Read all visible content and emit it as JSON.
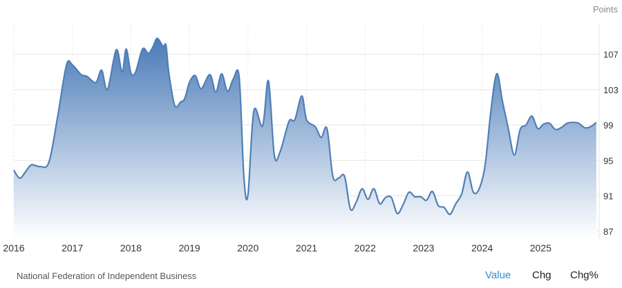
{
  "chart_data": {
    "type": "area",
    "unit_label": "Points",
    "yticks": [
      87,
      91,
      95,
      99,
      103,
      107
    ],
    "xticks": [
      "2016",
      "2017",
      "2018",
      "2019",
      "2020",
      "2021",
      "2022",
      "2023",
      "2024",
      "2025"
    ],
    "ylim": [
      86.2,
      110.4
    ],
    "xlim": [
      2016.0,
      2026.0
    ],
    "grid": "horizontal and vertical",
    "colors": {
      "line": "#4f7fb5",
      "fill_top": "#4a7bb8",
      "fill_bottom": "#ffffff"
    },
    "series": [
      {
        "x": [
          2016.0,
          2016.1,
          2016.2,
          2016.3,
          2016.45,
          2016.6,
          2016.75,
          2016.9,
          2017.0,
          2017.15,
          2017.25,
          2017.4,
          2017.5,
          2017.6,
          2017.75,
          2017.85,
          2017.92,
          2018.0,
          2018.08,
          2018.2,
          2018.3,
          2018.38,
          2018.45,
          2018.55,
          2018.6,
          2018.65,
          2018.75,
          2018.85,
          2018.92,
          2019.0,
          2019.1,
          2019.2,
          2019.35,
          2019.45,
          2019.55,
          2019.65,
          2019.75,
          2019.85,
          2019.93,
          2020.0,
          2020.1,
          2020.25,
          2020.35,
          2020.45,
          2020.55,
          2020.7,
          2020.8,
          2020.92,
          2021.0,
          2021.15,
          2021.25,
          2021.35,
          2021.45,
          2021.55,
          2021.65,
          2021.75,
          2021.85,
          2021.95,
          2022.05,
          2022.15,
          2022.25,
          2022.35,
          2022.45,
          2022.55,
          2022.65,
          2022.75,
          2022.85,
          2022.95,
          2023.05,
          2023.15,
          2023.25,
          2023.35,
          2023.45,
          2023.55,
          2023.65,
          2023.75,
          2023.85,
          2023.95,
          2024.05,
          2024.15,
          2024.25,
          2024.35,
          2024.45,
          2024.55,
          2024.65,
          2024.75,
          2024.85,
          2024.95,
          2025.05,
          2025.15,
          2025.25,
          2025.35,
          2025.45,
          2025.55,
          2025.65,
          2025.75,
          2025.85,
          2025.95
        ],
        "values": [
          93.9,
          93.0,
          93.7,
          94.5,
          94.3,
          94.8,
          100.0,
          105.8,
          105.8,
          104.7,
          104.5,
          103.8,
          105.2,
          103.0,
          107.5,
          105.0,
          107.6,
          104.9,
          105.0,
          107.6,
          107.1,
          107.9,
          108.8,
          107.9,
          108.0,
          104.8,
          101.2,
          101.6,
          102.0,
          103.8,
          104.6,
          103.1,
          104.7,
          102.7,
          104.8,
          102.8,
          104.2,
          104.4,
          93.1,
          91.1,
          100.6,
          98.9,
          104.0,
          95.6,
          96.0,
          99.4,
          99.6,
          102.3,
          99.6,
          98.8,
          97.6,
          98.6,
          93.2,
          93.0,
          93.2,
          89.5,
          90.3,
          91.8,
          90.6,
          91.8,
          90.1,
          90.8,
          90.8,
          89.0,
          90.0,
          91.4,
          90.9,
          90.9,
          90.5,
          91.5,
          89.9,
          89.7,
          88.9,
          90.1,
          91.2,
          93.7,
          91.4,
          91.8,
          94.4,
          100.6,
          104.8,
          101.6,
          98.5,
          95.6,
          98.5,
          99.0,
          100.0,
          98.6,
          99.1,
          99.2,
          98.5,
          98.7,
          99.2,
          99.3,
          99.2,
          98.7,
          98.8,
          99.3
        ]
      }
    ]
  },
  "footer": {
    "source": "National Federation of Independent Business",
    "tabs": [
      "Value",
      "Chg",
      "Chg%"
    ]
  }
}
